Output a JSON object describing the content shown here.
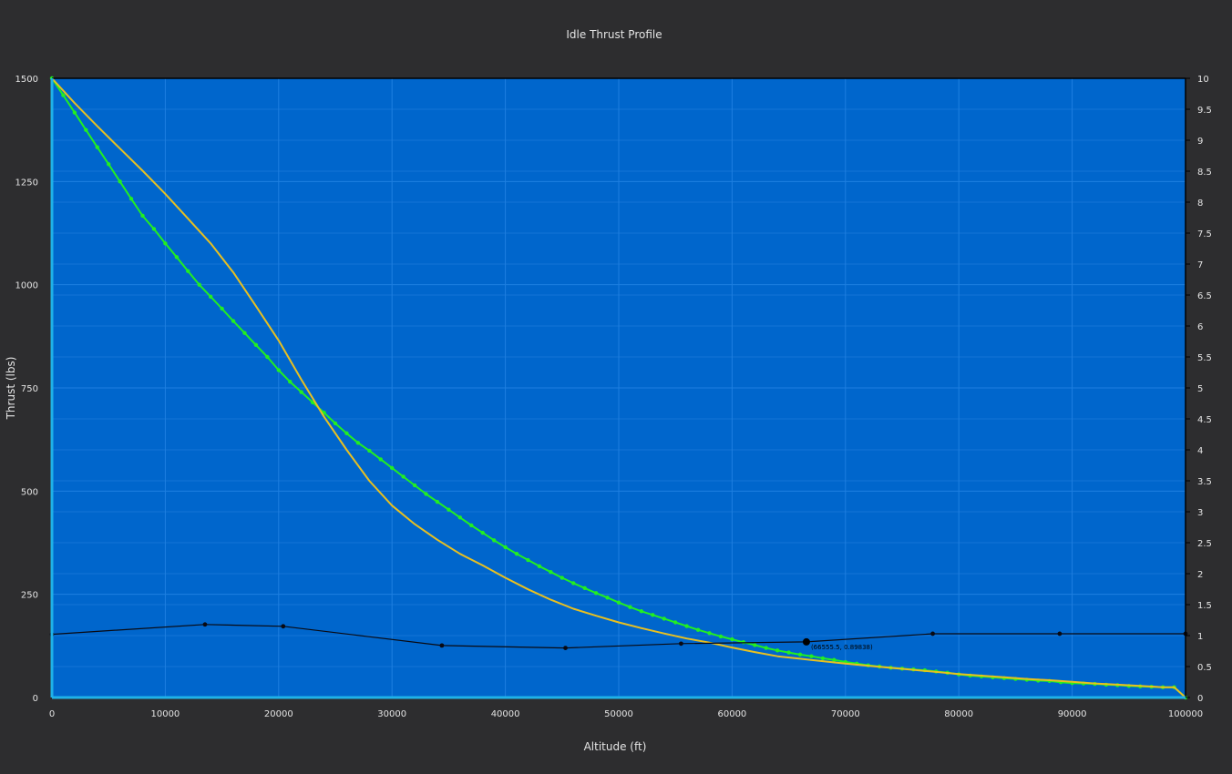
{
  "colors": {
    "background": "#2d2d2f",
    "plot_background": "#0066cc",
    "grid_major": "#1e7fe0",
    "grid_minor": "#1574d6",
    "axis_line": "#1fb2e8",
    "text": "#e4e4e4",
    "thrust_series": "#22ee22",
    "secondary_series": "#e8c020",
    "ratio_series": "#0a0a12"
  },
  "chart_data": {
    "type": "line",
    "title": "Idle Thrust Profile",
    "xlabel": "Altitude (ft)",
    "ylabel": "Thrust (lbs)",
    "y2label": "",
    "xlim": [
      0,
      100000
    ],
    "ylim": [
      0,
      1500
    ],
    "y2lim": [
      0,
      10
    ],
    "grid": true,
    "legend": "none",
    "x_ticks": [
      0,
      10000,
      20000,
      30000,
      40000,
      50000,
      60000,
      70000,
      80000,
      90000,
      100000
    ],
    "y_ticks": [
      0,
      250,
      500,
      750,
      1000,
      1250,
      1500
    ],
    "y2_ticks": [
      0,
      0.5,
      1,
      1.5,
      2,
      2.5,
      3,
      3.5,
      4,
      4.5,
      5,
      5.5,
      6,
      6.5,
      7,
      7.5,
      8,
      8.5,
      9,
      9.5,
      10
    ],
    "series": [
      {
        "axis": "left",
        "color": "#22ee22",
        "markers": true,
        "x": [
          0,
          1000,
          2000,
          3000,
          4000,
          5000,
          6000,
          7000,
          8000,
          9000,
          10000,
          11000,
          12000,
          13000,
          14000,
          15000,
          16000,
          17000,
          18000,
          19000,
          20000,
          21000,
          22000,
          23000,
          24000,
          25000,
          26000,
          27000,
          28000,
          29000,
          30000,
          31000,
          32000,
          33000,
          34000,
          35000,
          36000,
          37000,
          38000,
          39000,
          40000,
          41000,
          42000,
          43000,
          44000,
          45000,
          46000,
          47000,
          48000,
          49000,
          50000,
          51000,
          52000,
          53000,
          54000,
          55000,
          56000,
          57000,
          58000,
          59000,
          60000,
          61000,
          62000,
          63000,
          64000,
          65000,
          66000,
          67000,
          68000,
          69000,
          70000,
          71000,
          72000,
          73000,
          74000,
          75000,
          76000,
          77000,
          78000,
          79000,
          80000,
          81000,
          82000,
          83000,
          84000,
          85000,
          86000,
          87000,
          88000,
          89000,
          90000,
          91000,
          92000,
          93000,
          94000,
          95000,
          96000,
          97000,
          98000,
          99000,
          100000
        ],
        "y": [
          1500,
          1459,
          1417,
          1375,
          1333,
          1292,
          1250,
          1208,
          1167,
          1135,
          1100,
          1067,
          1033,
          1000,
          971,
          942,
          912,
          883,
          854,
          825,
          793,
          765,
          740,
          715,
          690,
          664,
          640,
          617,
          598,
          577,
          556,
          535,
          514,
          493,
          474,
          455,
          436,
          417,
          399,
          381,
          364,
          348,
          333,
          318,
          304,
          290,
          277,
          265,
          253,
          242,
          230,
          219,
          209,
          200,
          191,
          182,
          173,
          164,
          156,
          148,
          141,
          134,
          127,
          120,
          114,
          109,
          104,
          100,
          95,
          91,
          86,
          82,
          78,
          75,
          72,
          70,
          68,
          66,
          63,
          60,
          56,
          53,
          51,
          49,
          47,
          45,
          43,
          41,
          40,
          37,
          35,
          34,
          33,
          31,
          30,
          28,
          27,
          26,
          25,
          25,
          0
        ]
      },
      {
        "axis": "left",
        "color": "#e8c020",
        "markers": false,
        "x": [
          0,
          2000,
          4000,
          6000,
          8000,
          10000,
          12000,
          14000,
          16000,
          18000,
          20000,
          22000,
          24000,
          26000,
          28000,
          30000,
          32000,
          34000,
          36000,
          38000,
          40000,
          42000,
          44000,
          46000,
          48000,
          50000,
          52000,
          54000,
          56000,
          58000,
          60000,
          62000,
          64000,
          66000,
          68000,
          70000,
          72000,
          74000,
          76000,
          78000,
          80000,
          82000,
          84000,
          86000,
          88000,
          90000,
          92000,
          94000,
          96000,
          98000,
          99000,
          100000
        ],
        "y": [
          1500,
          1440,
          1384,
          1330,
          1276,
          1220,
          1160,
          1100,
          1030,
          948,
          865,
          770,
          680,
          600,
          525,
          465,
          420,
          382,
          348,
          320,
          290,
          262,
          237,
          215,
          198,
          182,
          168,
          155,
          143,
          133,
          121,
          110,
          100,
          94,
          88,
          82,
          77,
          72,
          67,
          62,
          57,
          53,
          49,
          45,
          42,
          38,
          34,
          31,
          28,
          25,
          25,
          0
        ]
      },
      {
        "axis": "right",
        "color": "#0a0a12",
        "markers": true,
        "x": [
          0,
          13500,
          20400,
          34400,
          45300,
          55500,
          66555,
          77700,
          88900,
          100000
        ],
        "y": [
          1.02,
          1.18,
          1.15,
          0.84,
          0.8,
          0.87,
          0.89838,
          1.03,
          1.03,
          1.03
        ]
      }
    ],
    "annotation": {
      "text": "(66555.5, 0.89838)",
      "x": 66555,
      "y": 0.89838,
      "axis": "right"
    }
  }
}
